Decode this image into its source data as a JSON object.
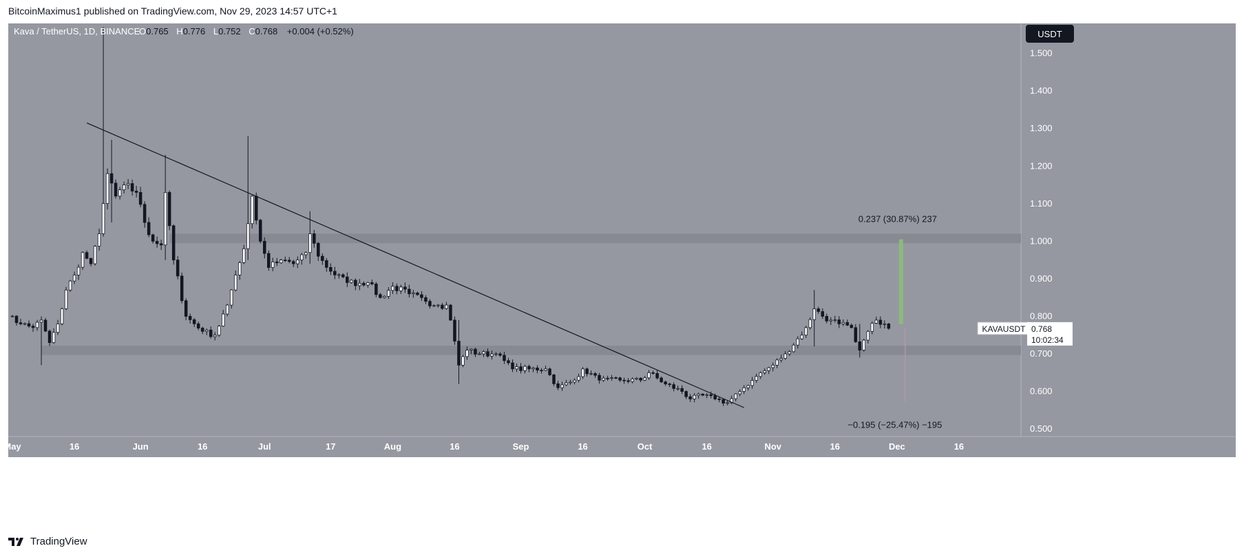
{
  "header": {
    "publisher": "BitcoinMaximus1 published on TradingView.com, Nov 29, 2023 14:57 UTC+1"
  },
  "footer": {
    "brand": "TradingView",
    "logo_icon": "tradingview-logo-icon"
  },
  "symbol_bar": {
    "title": "Kava / TetherUS, 1D, BINANCE",
    "o_label": "O",
    "o": "0.765",
    "h_label": "H",
    "h": "0.776",
    "l_label": "L",
    "l": "0.752",
    "c_label": "C",
    "c": "0.768",
    "change": "+0.004 (+0.52%)"
  },
  "currency_button": "USDT",
  "price_tag": {
    "symbol": "KAVAUSDT",
    "price": "0.768",
    "countdown": "10:02:34"
  },
  "colors": {
    "background": "#9598a1",
    "zone": "#878a93",
    "up": "#ffffff",
    "down": "#131722",
    "measure_up": "#8fb87e",
    "measure_down": "#c79aa4"
  },
  "chart_data": {
    "type": "candlestick",
    "ylim": [
      0.48,
      1.58
    ],
    "y_ticks": [
      "1.500",
      "1.400",
      "1.300",
      "1.200",
      "1.100",
      "1.000",
      "0.900",
      "0.800",
      "0.700",
      "0.600",
      "0.500"
    ],
    "x_ticks": [
      {
        "label": "May",
        "date": "2023-05-01"
      },
      {
        "label": "16",
        "date": "2023-05-16"
      },
      {
        "label": "Jun",
        "date": "2023-06-01"
      },
      {
        "label": "16",
        "date": "2023-06-16"
      },
      {
        "label": "Jul",
        "date": "2023-07-01"
      },
      {
        "label": "17",
        "date": "2023-07-17"
      },
      {
        "label": "Aug",
        "date": "2023-08-01"
      },
      {
        "label": "16",
        "date": "2023-08-16"
      },
      {
        "label": "Sep",
        "date": "2023-09-01"
      },
      {
        "label": "16",
        "date": "2023-09-16"
      },
      {
        "label": "Oct",
        "date": "2023-10-01"
      },
      {
        "label": "16",
        "date": "2023-10-16"
      },
      {
        "label": "Nov",
        "date": "2023-11-01"
      },
      {
        "label": "16",
        "date": "2023-11-16"
      },
      {
        "label": "Dec",
        "date": "2023-12-01"
      },
      {
        "label": "16",
        "date": "2023-12-16"
      }
    ],
    "x_range": [
      "2023-04-30",
      "2023-12-31"
    ],
    "key_points": [
      [
        "2023-04-30",
        0.8
      ],
      [
        "2023-05-03",
        0.78
      ],
      [
        "2023-05-06",
        0.77
      ],
      [
        "2023-05-08",
        0.79
      ],
      [
        "2023-05-10",
        0.73
      ],
      [
        "2023-05-12",
        0.78
      ],
      [
        "2023-05-14",
        0.87
      ],
      [
        "2023-05-16",
        0.91
      ],
      [
        "2023-05-18",
        0.97
      ],
      [
        "2023-05-20",
        0.94
      ],
      [
        "2023-05-22",
        1.02
      ],
      [
        "2023-05-24",
        1.18
      ],
      [
        "2023-05-26",
        1.12
      ],
      [
        "2023-05-28",
        1.15
      ],
      [
        "2023-05-31",
        1.13
      ],
      [
        "2023-06-02",
        1.05
      ],
      [
        "2023-06-04",
        1.0
      ],
      [
        "2023-06-06",
        0.99
      ],
      [
        "2023-06-07",
        1.13
      ],
      [
        "2023-06-09",
        0.95
      ],
      [
        "2023-06-12",
        0.8
      ],
      [
        "2023-06-16",
        0.76
      ],
      [
        "2023-06-19",
        0.75
      ],
      [
        "2023-06-22",
        0.83
      ],
      [
        "2023-06-24",
        0.91
      ],
      [
        "2023-06-26",
        0.98
      ],
      [
        "2023-06-28",
        1.12
      ],
      [
        "2023-06-30",
        1.0
      ],
      [
        "2023-07-02",
        0.93
      ],
      [
        "2023-07-05",
        0.95
      ],
      [
        "2023-07-08",
        0.94
      ],
      [
        "2023-07-11",
        0.97
      ],
      [
        "2023-07-12",
        1.02
      ],
      [
        "2023-07-14",
        0.96
      ],
      [
        "2023-07-17",
        0.92
      ],
      [
        "2023-07-21",
        0.89
      ],
      [
        "2023-07-26",
        0.89
      ],
      [
        "2023-07-29",
        0.85
      ],
      [
        "2023-08-01",
        0.88
      ],
      [
        "2023-08-05",
        0.86
      ],
      [
        "2023-08-09",
        0.84
      ],
      [
        "2023-08-12",
        0.83
      ],
      [
        "2023-08-14",
        0.83
      ],
      [
        "2023-08-15",
        0.79
      ],
      [
        "2023-08-17",
        0.67
      ],
      [
        "2023-08-19",
        0.71
      ],
      [
        "2023-08-22",
        0.7
      ],
      [
        "2023-08-26",
        0.7
      ],
      [
        "2023-08-30",
        0.66
      ],
      [
        "2023-09-03",
        0.66
      ],
      [
        "2023-09-07",
        0.66
      ],
      [
        "2023-09-10",
        0.61
      ],
      [
        "2023-09-14",
        0.63
      ],
      [
        "2023-09-16",
        0.66
      ],
      [
        "2023-09-20",
        0.63
      ],
      [
        "2023-09-25",
        0.63
      ],
      [
        "2023-09-30",
        0.63
      ],
      [
        "2023-10-02",
        0.65
      ],
      [
        "2023-10-06",
        0.62
      ],
      [
        "2023-10-10",
        0.6
      ],
      [
        "2023-10-12",
        0.58
      ],
      [
        "2023-10-15",
        0.59
      ],
      [
        "2023-10-18",
        0.58
      ],
      [
        "2023-10-21",
        0.57
      ],
      [
        "2023-10-24",
        0.6
      ],
      [
        "2023-10-28",
        0.64
      ],
      [
        "2023-11-01",
        0.67
      ],
      [
        "2023-11-04",
        0.7
      ],
      [
        "2023-11-07",
        0.74
      ],
      [
        "2023-11-09",
        0.77
      ],
      [
        "2023-11-11",
        0.82
      ],
      [
        "2023-11-13",
        0.8
      ],
      [
        "2023-11-15",
        0.79
      ],
      [
        "2023-11-17",
        0.78
      ],
      [
        "2023-11-20",
        0.77
      ],
      [
        "2023-11-22",
        0.71
      ],
      [
        "2023-11-24",
        0.76
      ],
      [
        "2023-11-26",
        0.79
      ],
      [
        "2023-11-28",
        0.78
      ],
      [
        "2023-11-29",
        0.768
      ]
    ],
    "spikes": [
      {
        "date": "2023-05-08",
        "high": 0.8,
        "low": 0.67
      },
      {
        "date": "2023-05-23",
        "high": 1.57,
        "low": 1.02
      },
      {
        "date": "2023-05-25",
        "high": 1.27,
        "low": 1.05
      },
      {
        "date": "2023-06-07",
        "high": 1.23,
        "low": 0.95
      },
      {
        "date": "2023-06-27",
        "high": 1.28,
        "low": 0.95
      },
      {
        "date": "2023-07-12",
        "high": 1.08,
        "low": 0.94
      },
      {
        "date": "2023-08-17",
        "high": 0.79,
        "low": 0.62
      },
      {
        "date": "2023-11-11",
        "high": 0.87,
        "low": 0.72
      },
      {
        "date": "2023-11-22",
        "high": 0.78,
        "low": 0.69
      }
    ],
    "zones": [
      {
        "from": 0.995,
        "to": 1.02,
        "start_date": "2023-06-08"
      },
      {
        "from": 0.697,
        "to": 0.722,
        "start_date": "2023-05-08"
      }
    ],
    "trendline": [
      {
        "date": "2023-05-19",
        "price": 1.315
      },
      {
        "date": "2023-10-25",
        "price": 0.557
      }
    ],
    "measure_up": {
      "label": "0.237 (30.87%) 237",
      "date": "2023-12-02",
      "from": 0.768,
      "to": 1.005
    },
    "measure_down": {
      "label": "−0.195 (−25.47%) −195",
      "date": "2023-12-03",
      "from": 0.768,
      "to": 0.573
    }
  }
}
